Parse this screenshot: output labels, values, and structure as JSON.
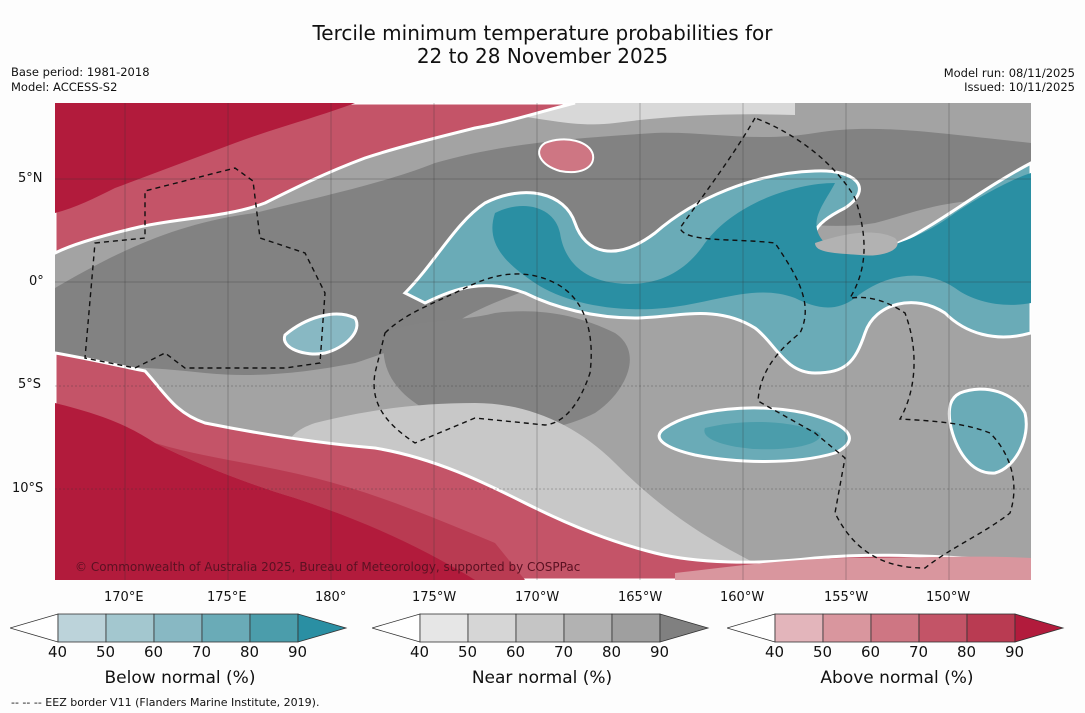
{
  "header": {
    "title_line1": "Tercile minimum temperature probabilities for",
    "title_line2": "22 to 28 November 2025",
    "base_period": "Base period: 1981-2018",
    "model": "Model: ACCESS-S2",
    "model_run": "Model run: 08/11/2025",
    "issued": "Issued: 10/11/2025"
  },
  "map": {
    "lat_labels": [
      "5°N",
      "0°",
      "5°S",
      "10°S"
    ],
    "lon_labels": [
      "170°E",
      "175°E",
      "180°",
      "175°W",
      "170°W",
      "165°W",
      "160°W",
      "155°W",
      "150°W"
    ],
    "copyright": "© Commonwealth of Australia 2025, Bureau of Meteorology, supported by COSPPac",
    "colors": {
      "below": "#2b8fa3",
      "near": "#808080",
      "above": "#b5243d",
      "white_contour": "#ffffff"
    }
  },
  "legend": {
    "below": {
      "label": "Below normal (%)",
      "ticks": [
        "40",
        "50",
        "60",
        "70",
        "80",
        "90"
      ],
      "colors": [
        "#bcd3da",
        "#a3c7cf",
        "#88b8c3",
        "#6aabb7",
        "#4b9dab",
        "#2a8fa3"
      ]
    },
    "near": {
      "label": "Near normal (%)",
      "ticks": [
        "40",
        "50",
        "60",
        "70",
        "80",
        "90"
      ],
      "colors": [
        "#e6e6e6",
        "#d6d6d6",
        "#c5c5c5",
        "#b2b2b2",
        "#9f9f9f",
        "#808080"
      ]
    },
    "above": {
      "label": "Above normal (%)",
      "ticks": [
        "40",
        "50",
        "60",
        "70",
        "80",
        "90"
      ],
      "colors": [
        "#e3b5bb",
        "#d9969e",
        "#ce7683",
        "#c35467",
        "#b93b52",
        "#b21b3c"
      ]
    }
  },
  "footnote": "--  --  -- EEZ border V11 (Flanders Marine Institute, 2019)."
}
